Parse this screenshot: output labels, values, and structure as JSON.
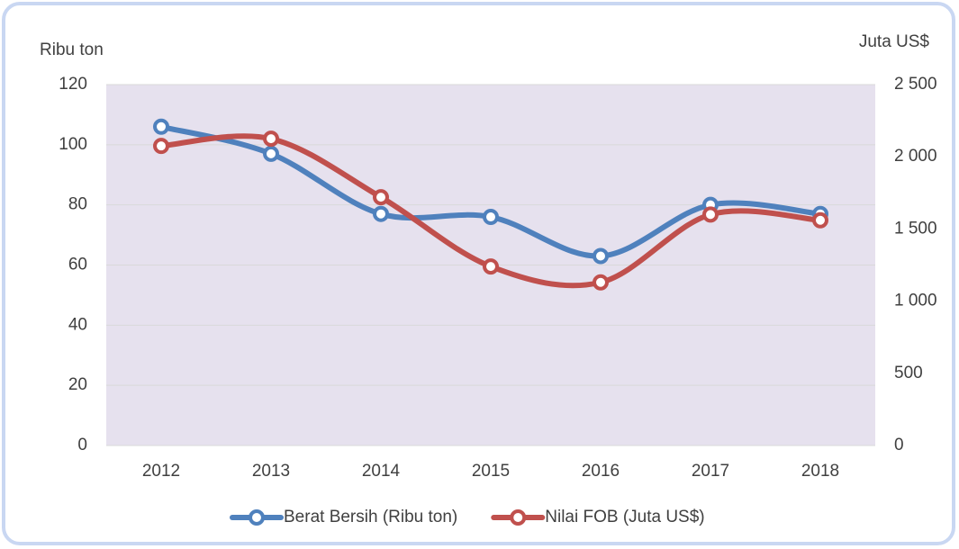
{
  "chart_data": {
    "type": "line",
    "y_label": "Ribu ton",
    "y2_label": "Juta US$",
    "categories": [
      "2012",
      "2013",
      "2014",
      "2015",
      "2016",
      "2017",
      "2018"
    ],
    "series": [
      {
        "name": "Berat Bersih (Ribu ton)",
        "color": "#4f81bd",
        "values": [
          106,
          97,
          77,
          76,
          63,
          80,
          77
        ]
      },
      {
        "name": "Nilai FOB (Juta US$)",
        "color": "#c0504d",
        "axis": "y2",
        "values": [
          2075,
          2125,
          1720,
          1240,
          1130,
          1600,
          1560
        ]
      }
    ],
    "ylim": [
      0,
      120
    ],
    "yticks": [
      0,
      20,
      40,
      60,
      80,
      100,
      120
    ],
    "y2lim": [
      0,
      2500
    ],
    "y2ticks": [
      0,
      500,
      {
        "value": 1000,
        "label": "1 000"
      },
      {
        "value": 1500,
        "label": "1 500"
      },
      {
        "value": 2000,
        "label": "2 000"
      },
      {
        "value": 2500,
        "label": "2 500"
      }
    ],
    "grid": true,
    "smooth": true,
    "legend": "bottom",
    "plot_background": "#e6e1ee"
  }
}
